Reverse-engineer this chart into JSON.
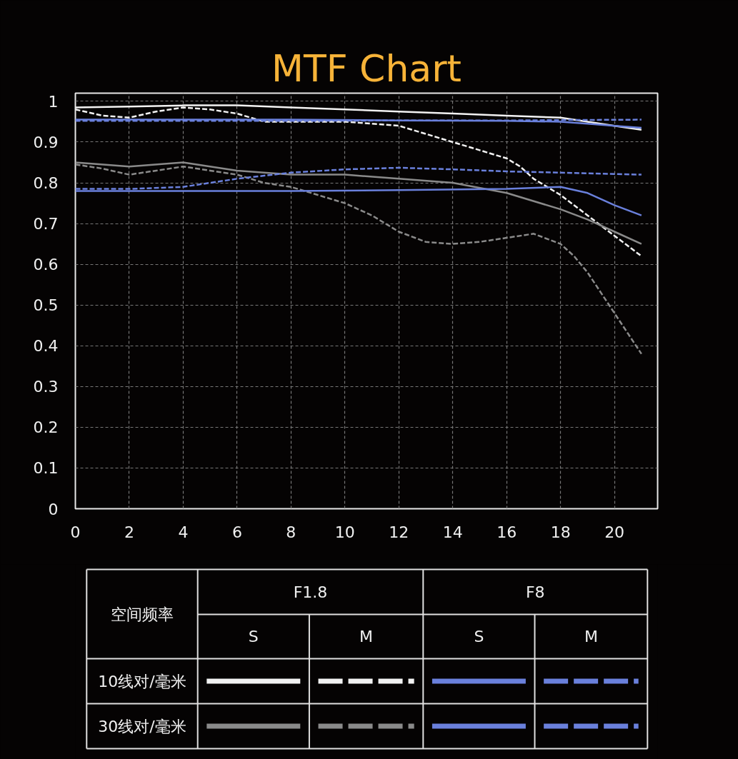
{
  "chart_data": {
    "type": "line",
    "title": "MTF Chart",
    "xlim": [
      0,
      21.6
    ],
    "ylim": [
      0,
      1.02
    ],
    "xticks": [
      0,
      2,
      4,
      6,
      8,
      10,
      12,
      14,
      16,
      18,
      20
    ],
    "yticks": [
      0,
      0.1,
      0.2,
      0.3,
      0.4,
      0.5,
      0.6,
      0.7,
      0.8,
      0.9,
      1
    ],
    "grid": true,
    "marker": "none",
    "series": [
      {
        "color": "#f2f2f2",
        "line_style": "solid",
        "x": [
          0,
          2,
          4,
          6,
          8,
          10,
          12,
          14,
          16,
          18,
          19,
          20,
          21
        ],
        "values": [
          0.985,
          0.987,
          0.99,
          0.99,
          0.985,
          0.98,
          0.975,
          0.97,
          0.965,
          0.96,
          0.95,
          0.94,
          0.93
        ]
      },
      {
        "color": "#f2f2f2",
        "line_style": "dashed",
        "x": [
          0,
          1,
          2,
          3,
          4,
          5,
          6,
          7,
          8,
          10,
          12,
          13,
          14,
          15,
          16,
          16.5,
          17,
          18,
          19,
          20,
          21
        ],
        "values": [
          0.98,
          0.965,
          0.96,
          0.975,
          0.985,
          0.98,
          0.97,
          0.95,
          0.95,
          0.95,
          0.94,
          0.92,
          0.9,
          0.88,
          0.86,
          0.84,
          0.81,
          0.77,
          0.72,
          0.67,
          0.62
        ]
      },
      {
        "color": "#6a80dc",
        "line_style": "solid",
        "x": [
          0,
          4,
          8,
          12,
          16,
          18,
          19,
          20,
          21
        ],
        "values": [
          0.955,
          0.955,
          0.955,
          0.953,
          0.952,
          0.95,
          0.945,
          0.94,
          0.935
        ]
      },
      {
        "color": "#6a80dc",
        "line_style": "dashed",
        "x": [
          0,
          4,
          8,
          12,
          16,
          18,
          21
        ],
        "values": [
          0.952,
          0.952,
          0.952,
          0.953,
          0.953,
          0.954,
          0.955
        ]
      },
      {
        "color": "#8a8a8a",
        "line_style": "solid",
        "x": [
          0,
          2,
          4,
          6,
          8,
          10,
          12,
          14,
          16,
          18,
          19,
          20,
          21
        ],
        "values": [
          0.85,
          0.84,
          0.85,
          0.83,
          0.82,
          0.82,
          0.81,
          0.8,
          0.775,
          0.735,
          0.71,
          0.68,
          0.65
        ]
      },
      {
        "color": "#8a8a8a",
        "line_style": "dashed",
        "x": [
          0,
          1,
          2,
          3,
          4,
          5,
          6,
          7,
          8,
          10,
          11,
          12,
          13,
          14,
          15,
          16,
          17,
          18,
          18.5,
          19,
          19.5,
          20,
          20.5,
          21
        ],
        "values": [
          0.845,
          0.835,
          0.82,
          0.83,
          0.84,
          0.83,
          0.82,
          0.8,
          0.79,
          0.75,
          0.72,
          0.68,
          0.655,
          0.65,
          0.655,
          0.665,
          0.675,
          0.65,
          0.62,
          0.58,
          0.53,
          0.48,
          0.43,
          0.38
        ]
      },
      {
        "color": "#6a80dc",
        "line_style": "solid",
        "x": [
          0,
          4,
          8,
          12,
          16,
          18,
          19,
          20,
          21
        ],
        "values": [
          0.78,
          0.78,
          0.78,
          0.782,
          0.785,
          0.79,
          0.775,
          0.745,
          0.72
        ]
      },
      {
        "color": "#6a80dc",
        "line_style": "dashed",
        "x": [
          0,
          2,
          4,
          6,
          8,
          10,
          12,
          14,
          16,
          18,
          21
        ],
        "values": [
          0.785,
          0.785,
          0.79,
          0.81,
          0.825,
          0.833,
          0.837,
          0.833,
          0.828,
          0.825,
          0.82
        ]
      }
    ],
    "annotations": [
      "空间频率",
      "F1.8",
      "F8",
      "S",
      "M",
      "S",
      "M",
      "10线对/毫米",
      "30线对/毫米"
    ]
  }
}
